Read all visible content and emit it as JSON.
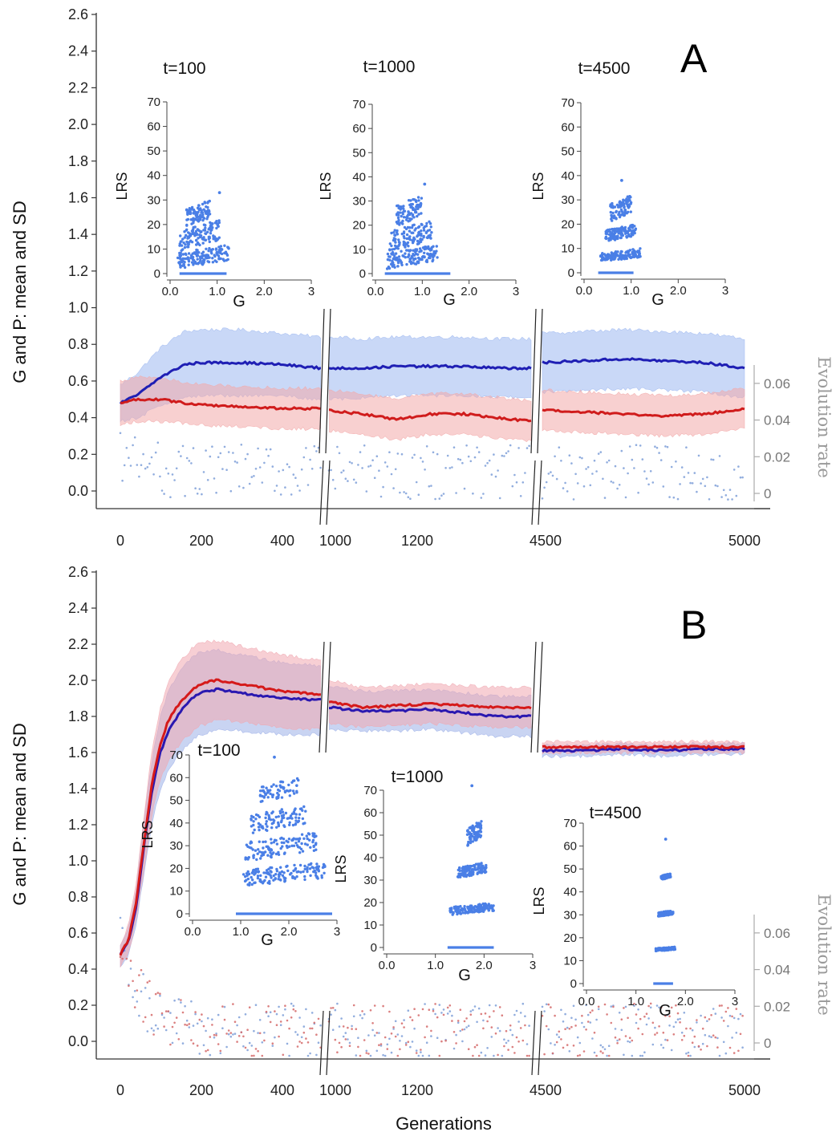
{
  "chart_data": [
    {
      "type": "line",
      "panel_label": "A",
      "ylabel": "G and P: mean and SD",
      "xlabel": "",
      "y2label": "Evolution rate",
      "y_ticks": [
        "0.0",
        "0.2",
        "0.4",
        "0.6",
        "0.8",
        "1.0",
        "1.2",
        "1.4",
        "1.6",
        "1.8",
        "2.0",
        "2.2",
        "2.4",
        "2.6"
      ],
      "x_ticks": [
        "0",
        "200",
        "400",
        "1000",
        "1200",
        "4500",
        "5000"
      ],
      "y2_ticks": [
        "0",
        "0.02",
        "0.04",
        "0.06"
      ],
      "ylim": [
        0,
        2.6
      ],
      "segments": [
        {
          "xlim": [
            0,
            500
          ],
          "ticks": [
            0,
            200,
            400
          ]
        },
        {
          "xlim": [
            900,
            1500
          ],
          "ticks": [
            1000,
            1200
          ]
        },
        {
          "xlim": [
            4500,
            5000
          ],
          "ticks": [
            4500,
            5000
          ]
        }
      ],
      "series": [
        {
          "color": "#1f1fb4",
          "band_color": "#9db8f0",
          "x": [
            0,
            40,
            100,
            160,
            200,
            300,
            400,
            500,
            900,
            1000,
            1100,
            1200,
            1300,
            1400,
            1500,
            4500,
            4600,
            4700,
            4800,
            4900,
            5000
          ],
          "mean": [
            0.48,
            0.52,
            0.62,
            0.69,
            0.7,
            0.7,
            0.69,
            0.67,
            0.67,
            0.67,
            0.68,
            0.68,
            0.68,
            0.67,
            0.67,
            0.7,
            0.71,
            0.72,
            0.71,
            0.7,
            0.67
          ],
          "sd": [
            0.1,
            0.12,
            0.16,
            0.18,
            0.18,
            0.18,
            0.17,
            0.17,
            0.17,
            0.16,
            0.16,
            0.16,
            0.16,
            0.16,
            0.16,
            0.16,
            0.16,
            0.16,
            0.16,
            0.16,
            0.16
          ]
        },
        {
          "color": "#d01c1c",
          "band_color": "#f2a9a9",
          "x": [
            0,
            40,
            100,
            160,
            200,
            300,
            400,
            500,
            900,
            1000,
            1100,
            1200,
            1300,
            1400,
            1500,
            4500,
            4600,
            4700,
            4800,
            4900,
            5000
          ],
          "mean": [
            0.48,
            0.5,
            0.5,
            0.48,
            0.47,
            0.46,
            0.45,
            0.45,
            0.44,
            0.42,
            0.39,
            0.42,
            0.42,
            0.4,
            0.38,
            0.44,
            0.43,
            0.42,
            0.41,
            0.42,
            0.45
          ],
          "sd": [
            0.12,
            0.12,
            0.12,
            0.11,
            0.11,
            0.11,
            0.11,
            0.11,
            0.11,
            0.11,
            0.11,
            0.11,
            0.11,
            0.11,
            0.11,
            0.11,
            0.11,
            0.11,
            0.11,
            0.11,
            0.11
          ]
        }
      ],
      "evolution_rate": {
        "colors": [
          "#7e9fd8"
        ],
        "level": 0.01,
        "early_level": 0.02
      },
      "insets": [
        {
          "title": "t=100",
          "xlabel": "G",
          "ylabel": "LRS",
          "x_ticks": [
            "0.0",
            "1.0",
            "2.0",
            "3"
          ],
          "y_ticks": [
            "0",
            "10",
            "20",
            "30",
            "40",
            "50",
            "60",
            "70"
          ],
          "xlim": [
            0,
            3
          ],
          "ylim": [
            0,
            70
          ],
          "clusters": [
            {
              "x": [
                0.15,
                1.25
              ],
              "y": [
                1,
                12
              ]
            },
            {
              "x": [
                0.2,
                1.05
              ],
              "y": [
                8,
                22
              ]
            },
            {
              "x": [
                0.35,
                0.85
              ],
              "y": [
                18,
                30
              ]
            }
          ],
          "max_point": [
            1.05,
            33
          ],
          "baseline": [
            0.2,
            1.2
          ]
        },
        {
          "title": "t=1000",
          "xlabel": "G",
          "ylabel": "LRS",
          "x_ticks": [
            "0.0",
            "1.0",
            "2.0",
            "3"
          ],
          "y_ticks": [
            "0",
            "10",
            "20",
            "30",
            "40",
            "50",
            "60",
            "70"
          ],
          "xlim": [
            0,
            3
          ],
          "ylim": [
            0,
            70
          ],
          "clusters": [
            {
              "x": [
                0.25,
                1.35
              ],
              "y": [
                1,
                12
              ]
            },
            {
              "x": [
                0.3,
                1.2
              ],
              "y": [
                8,
                22
              ]
            },
            {
              "x": [
                0.45,
                1.0
              ],
              "y": [
                18,
                33
              ]
            }
          ],
          "max_point": [
            1.05,
            37
          ],
          "baseline": [
            0.2,
            1.6
          ]
        },
        {
          "title": "t=4500",
          "xlabel": "G",
          "ylabel": "LRS",
          "x_ticks": [
            "0.0",
            "1.0",
            "2.0",
            "3"
          ],
          "y_ticks": [
            "0",
            "10",
            "20",
            "30",
            "40",
            "50",
            "60",
            "70"
          ],
          "xlim": [
            0,
            3
          ],
          "ylim": [
            0,
            70
          ],
          "clusters": [
            {
              "x": [
                0.35,
                1.2
              ],
              "y": [
                4,
                10
              ]
            },
            {
              "x": [
                0.45,
                1.1
              ],
              "y": [
                12,
                20
              ]
            },
            {
              "x": [
                0.55,
                1.0
              ],
              "y": [
                20,
                32
              ]
            }
          ],
          "max_point": [
            0.8,
            38
          ],
          "baseline": [
            0.3,
            1.05
          ]
        }
      ]
    },
    {
      "type": "line",
      "panel_label": "B",
      "ylabel": "G and P: mean and SD",
      "xlabel": "Generations",
      "y2label": "Evolution rate",
      "y_ticks": [
        "0.0",
        "0.2",
        "0.4",
        "0.6",
        "0.8",
        "1.0",
        "1.2",
        "1.4",
        "1.6",
        "1.8",
        "2.0",
        "2.2",
        "2.4",
        "2.6"
      ],
      "x_ticks": [
        "0",
        "200",
        "400",
        "1000",
        "1200",
        "4500",
        "5000"
      ],
      "y2_ticks": [
        "0",
        "0.02",
        "0.04",
        "0.06"
      ],
      "ylim": [
        0,
        2.6
      ],
      "segments": [
        {
          "xlim": [
            0,
            500
          ],
          "ticks": [
            0,
            200,
            400
          ]
        },
        {
          "xlim": [
            900,
            1500
          ],
          "ticks": [
            1000,
            1200
          ]
        },
        {
          "xlim": [
            4500,
            5000
          ],
          "ticks": [
            4500,
            5000
          ]
        }
      ],
      "series": [
        {
          "color": "#2a18b0",
          "band_color": "#9db0e8",
          "x": [
            0,
            20,
            40,
            60,
            80,
            100,
            120,
            150,
            180,
            200,
            240,
            300,
            400,
            500,
            900,
            1000,
            1100,
            1200,
            1300,
            1400,
            1500,
            4500,
            4600,
            4700,
            4800,
            4900,
            5000
          ],
          "mean": [
            0.48,
            0.55,
            0.75,
            1.1,
            1.4,
            1.6,
            1.72,
            1.83,
            1.9,
            1.93,
            1.95,
            1.93,
            1.9,
            1.89,
            1.85,
            1.83,
            1.83,
            1.84,
            1.82,
            1.8,
            1.8,
            1.61,
            1.61,
            1.62,
            1.61,
            1.62,
            1.62
          ],
          "sd": [
            0.06,
            0.08,
            0.1,
            0.15,
            0.18,
            0.2,
            0.22,
            0.23,
            0.23,
            0.23,
            0.22,
            0.21,
            0.2,
            0.19,
            0.12,
            0.11,
            0.11,
            0.11,
            0.11,
            0.11,
            0.11,
            0.03,
            0.03,
            0.03,
            0.03,
            0.03,
            0.03
          ]
        },
        {
          "color": "#d51a1a",
          "band_color": "#f0a8b0",
          "x": [
            0,
            20,
            40,
            60,
            80,
            100,
            120,
            150,
            180,
            200,
            240,
            300,
            400,
            500,
            900,
            1000,
            1100,
            1200,
            1300,
            1400,
            1500,
            4500,
            4600,
            4700,
            4800,
            4900,
            5000
          ],
          "mean": [
            0.48,
            0.56,
            0.78,
            1.12,
            1.45,
            1.65,
            1.78,
            1.88,
            1.95,
            1.98,
            2.0,
            1.98,
            1.94,
            1.92,
            1.88,
            1.85,
            1.86,
            1.87,
            1.86,
            1.85,
            1.85,
            1.63,
            1.63,
            1.63,
            1.63,
            1.63,
            1.63
          ],
          "sd": [
            0.06,
            0.08,
            0.1,
            0.15,
            0.18,
            0.2,
            0.22,
            0.23,
            0.23,
            0.23,
            0.22,
            0.21,
            0.2,
            0.19,
            0.12,
            0.11,
            0.11,
            0.11,
            0.11,
            0.11,
            0.11,
            0.03,
            0.03,
            0.03,
            0.03,
            0.03,
            0.03
          ]
        }
      ],
      "evolution_rate": {
        "colors": [
          "#7e9fd8",
          "#d56a6a"
        ],
        "level": 0.005,
        "early_level": 0.055
      },
      "insets": [
        {
          "title": "t=100",
          "xlabel": "G",
          "ylabel": "LRS",
          "x_ticks": [
            "0.0",
            "1.0",
            "2.0",
            "3"
          ],
          "y_ticks": [
            "0",
            "10",
            "20",
            "30",
            "40",
            "50",
            "60",
            "70"
          ],
          "xlim": [
            0,
            3
          ],
          "ylim": [
            0,
            70
          ],
          "clusters": [
            {
              "x": [
                1.05,
                2.75
              ],
              "y": [
                11,
                23
              ]
            },
            {
              "x": [
                1.1,
                2.6
              ],
              "y": [
                22,
                36
              ]
            },
            {
              "x": [
                1.2,
                2.35
              ],
              "y": [
                34,
                48
              ]
            },
            {
              "x": [
                1.4,
                2.2
              ],
              "y": [
                48,
                60
              ]
            }
          ],
          "max_point": [
            1.7,
            69
          ],
          "baseline": [
            0.9,
            2.9
          ]
        },
        {
          "title": "t=1000",
          "xlabel": "G",
          "ylabel": "LRS",
          "x_ticks": [
            "0.0",
            "1.0",
            "2.0",
            "3"
          ],
          "y_ticks": [
            "0",
            "10",
            "20",
            "30",
            "40",
            "50",
            "60",
            "70"
          ],
          "xlim": [
            0,
            3
          ],
          "ylim": [
            0,
            70
          ],
          "clusters": [
            {
              "x": [
                1.3,
                2.2
              ],
              "y": [
                14,
                20
              ]
            },
            {
              "x": [
                1.45,
                2.05
              ],
              "y": [
                30,
                38
              ]
            },
            {
              "x": [
                1.65,
                1.95
              ],
              "y": [
                44,
                57
              ]
            }
          ],
          "max_point": [
            1.75,
            72
          ],
          "baseline": [
            1.25,
            2.2
          ]
        },
        {
          "title": "t=4500",
          "xlabel": "G",
          "ylabel": "LRS",
          "x_ticks": [
            "0.0",
            "1.0",
            "2.0",
            "3"
          ],
          "y_ticks": [
            "0",
            "10",
            "20",
            "30",
            "40",
            "50",
            "60",
            "70"
          ],
          "xlim": [
            0,
            3
          ],
          "ylim": [
            0,
            70
          ],
          "clusters": [
            {
              "x": [
                1.4,
                1.8
              ],
              "y": [
                14,
                16
              ]
            },
            {
              "x": [
                1.45,
                1.75
              ],
              "y": [
                29,
                32
              ]
            },
            {
              "x": [
                1.5,
                1.7
              ],
              "y": [
                45,
                48
              ]
            }
          ],
          "max_point": [
            1.6,
            63
          ],
          "baseline": [
            1.35,
            1.75
          ]
        }
      ]
    }
  ]
}
